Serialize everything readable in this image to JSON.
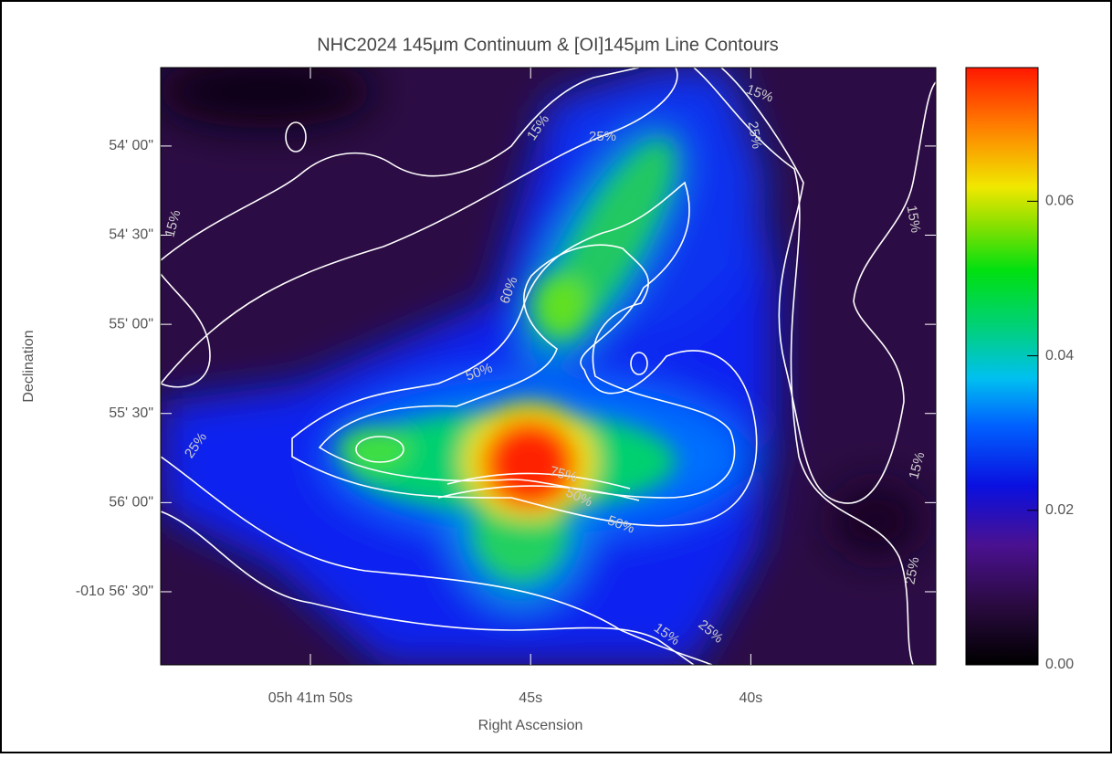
{
  "chart_data": {
    "type": "image",
    "title": "NHC2024 145μm Continuum & [OI]145μm Line Contours",
    "xlabel": "Right Ascension",
    "ylabel": "Declination",
    "xlim": [
      53.4,
      35.8
    ],
    "xticks": [
      {
        "value": 50,
        "label": "05h 41m 50s"
      },
      {
        "value": 45,
        "label": "45s"
      },
      {
        "value": 40,
        "label": "40s"
      }
    ],
    "ylim": [
      3414.6,
      3213.6
    ],
    "yticks": [
      {
        "value": 3240,
        "label": "54' 00\""
      },
      {
        "value": 3270,
        "label": "54' 30\""
      },
      {
        "value": 3300,
        "label": "55' 00\""
      },
      {
        "value": 3330,
        "label": "55' 30\""
      },
      {
        "value": 3360,
        "label": "56' 00\""
      },
      {
        "value": 3390,
        "label": "-01o 56' 30\""
      }
    ],
    "colorbar_lim": [
      0,
      0.0773
    ],
    "colorbar_ticks": [
      {
        "value": 0,
        "label": "0.00"
      },
      0.02,
      0.04,
      0.06
    ],
    "contour_levels": [
      {
        "value": 15,
        "label": "15%"
      },
      {
        "value": 25,
        "label": "25%"
      },
      {
        "value": 50,
        "label": "50%"
      },
      {
        "value": 60,
        "label": "60%"
      },
      {
        "value": 75,
        "label": "75%"
      }
    ]
  }
}
